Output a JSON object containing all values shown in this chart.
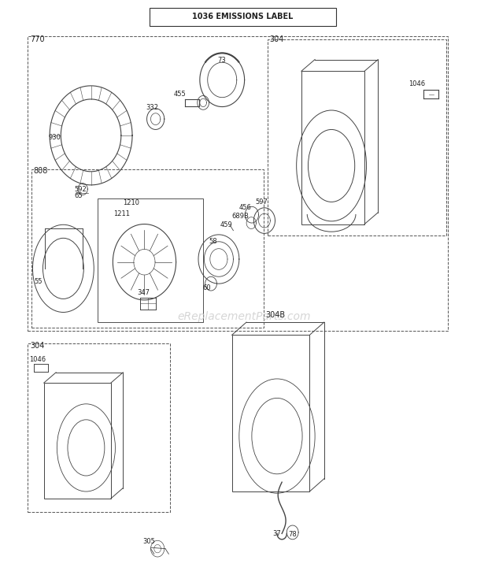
{
  "bg_color": "#ffffff",
  "title_label": "1036 EMISSIONS LABEL",
  "watermark": "eReplacementParts.com",
  "gray": "#444444",
  "light_gray": "#888888"
}
